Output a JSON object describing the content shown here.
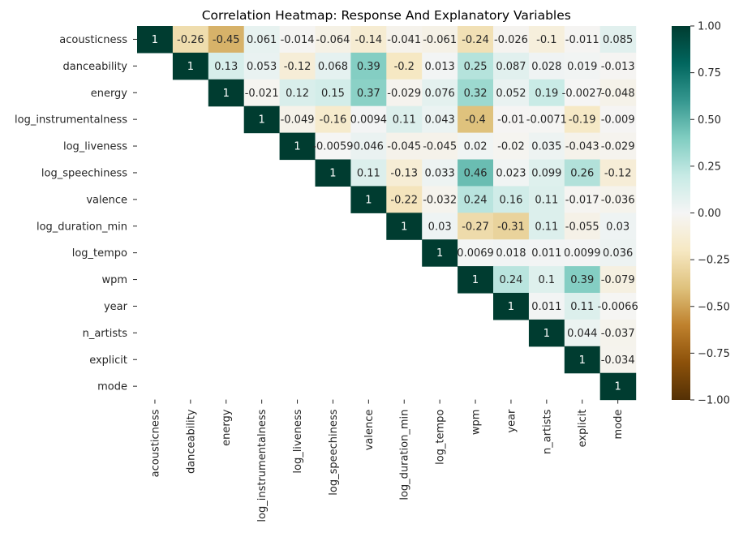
{
  "chart_data": {
    "type": "heatmap",
    "title": "Correlation Heatmap: Response And Explanatory Variables",
    "row_labels": [
      "acousticness",
      "danceability",
      "energy",
      "log_instrumentalness",
      "log_liveness",
      "log_speechiness",
      "valence",
      "log_duration_min",
      "log_tempo",
      "wpm",
      "year",
      "n_artists",
      "explicit",
      "mode"
    ],
    "col_labels": [
      "acousticness",
      "danceability",
      "energy",
      "log_instrumentalness",
      "log_liveness",
      "log_speechiness",
      "valence",
      "log_duration_min",
      "log_tempo",
      "wpm",
      "year",
      "n_artists",
      "explicit",
      "mode"
    ],
    "values": [
      [
        1,
        -0.26,
        -0.45,
        0.061,
        -0.014,
        -0.064,
        -0.14,
        -0.041,
        -0.061,
        -0.24,
        -0.026,
        -0.1,
        -0.011,
        0.085
      ],
      [
        null,
        1,
        0.13,
        0.053,
        -0.12,
        0.068,
        0.39,
        -0.2,
        0.013,
        0.25,
        0.087,
        0.028,
        0.019,
        -0.013
      ],
      [
        null,
        null,
        1,
        -0.021,
        0.12,
        0.15,
        0.37,
        -0.029,
        0.076,
        0.32,
        0.052,
        0.19,
        -0.0027,
        -0.048
      ],
      [
        null,
        null,
        null,
        1,
        -0.049,
        -0.16,
        0.0094,
        0.11,
        0.043,
        -0.4,
        -0.01,
        -0.0071,
        -0.19,
        -0.009
      ],
      [
        null,
        null,
        null,
        null,
        1,
        -0.0059,
        0.046,
        -0.045,
        -0.045,
        0.02,
        -0.02,
        0.035,
        -0.043,
        -0.029
      ],
      [
        null,
        null,
        null,
        null,
        null,
        1,
        0.11,
        -0.13,
        0.033,
        0.46,
        0.023,
        0.099,
        0.26,
        -0.12
      ],
      [
        null,
        null,
        null,
        null,
        null,
        null,
        1,
        -0.22,
        -0.032,
        0.24,
        0.16,
        0.11,
        -0.017,
        -0.036
      ],
      [
        null,
        null,
        null,
        null,
        null,
        null,
        null,
        1,
        0.03,
        -0.27,
        -0.31,
        0.11,
        -0.055,
        0.03
      ],
      [
        null,
        null,
        null,
        null,
        null,
        null,
        null,
        null,
        1,
        0.0069,
        0.018,
        0.011,
        0.0099,
        0.036
      ],
      [
        null,
        null,
        null,
        null,
        null,
        null,
        null,
        null,
        null,
        1,
        0.24,
        0.1,
        0.39,
        -0.079
      ],
      [
        null,
        null,
        null,
        null,
        null,
        null,
        null,
        null,
        null,
        null,
        1,
        0.011,
        0.11,
        -0.0066
      ],
      [
        null,
        null,
        null,
        null,
        null,
        null,
        null,
        null,
        null,
        null,
        null,
        1,
        0.044,
        -0.037
      ],
      [
        null,
        null,
        null,
        null,
        null,
        null,
        null,
        null,
        null,
        null,
        null,
        null,
        1,
        -0.034
      ],
      [
        null,
        null,
        null,
        null,
        null,
        null,
        null,
        null,
        null,
        null,
        null,
        null,
        null,
        1
      ]
    ],
    "value_labels": [
      [
        "1",
        "-0.26",
        "-0.45",
        "0.061",
        "-0.014",
        "-0.064",
        "-0.14",
        "-0.041",
        "-0.061",
        "-0.24",
        "-0.026",
        "-0.1",
        "-0.011",
        "0.085"
      ],
      [
        null,
        "1",
        "0.13",
        "0.053",
        "-0.12",
        "0.068",
        "0.39",
        "-0.2",
        "0.013",
        "0.25",
        "0.087",
        "0.028",
        "0.019",
        "-0.013"
      ],
      [
        null,
        null,
        "1",
        "-0.021",
        "0.12",
        "0.15",
        "0.37",
        "-0.029",
        "0.076",
        "0.32",
        "0.052",
        "0.19",
        "-0.0027",
        "-0.048"
      ],
      [
        null,
        null,
        null,
        "1",
        "-0.049",
        "-0.16",
        "0.0094",
        "0.11",
        "0.043",
        "-0.4",
        "-0.01",
        "-0.0071",
        "-0.19",
        "-0.009"
      ],
      [
        null,
        null,
        null,
        null,
        "1",
        "-0.0059",
        "0.046",
        "-0.045",
        "-0.045",
        "0.02",
        "-0.02",
        "0.035",
        "-0.043",
        "-0.029"
      ],
      [
        null,
        null,
        null,
        null,
        null,
        "1",
        "0.11",
        "-0.13",
        "0.033",
        "0.46",
        "0.023",
        "0.099",
        "0.26",
        "-0.12"
      ],
      [
        null,
        null,
        null,
        null,
        null,
        null,
        "1",
        "-0.22",
        "-0.032",
        "0.24",
        "0.16",
        "0.11",
        "-0.017",
        "-0.036"
      ],
      [
        null,
        null,
        null,
        null,
        null,
        null,
        null,
        "1",
        "0.03",
        "-0.27",
        "-0.31",
        "0.11",
        "-0.055",
        "0.03"
      ],
      [
        null,
        null,
        null,
        null,
        null,
        null,
        null,
        null,
        "1",
        "0.0069",
        "0.018",
        "0.011",
        "0.0099",
        "0.036"
      ],
      [
        null,
        null,
        null,
        null,
        null,
        null,
        null,
        null,
        null,
        "1",
        "0.24",
        "0.1",
        "0.39",
        "-0.079"
      ],
      [
        null,
        null,
        null,
        null,
        null,
        null,
        null,
        null,
        null,
        null,
        "1",
        "0.011",
        "0.11",
        "-0.0066"
      ],
      [
        null,
        null,
        null,
        null,
        null,
        null,
        null,
        null,
        null,
        null,
        null,
        "1",
        "0.044",
        "-0.037"
      ],
      [
        null,
        null,
        null,
        null,
        null,
        null,
        null,
        null,
        null,
        null,
        null,
        null,
        "1",
        "-0.034"
      ],
      [
        null,
        null,
        null,
        null,
        null,
        null,
        null,
        null,
        null,
        null,
        null,
        null,
        null,
        "1"
      ]
    ],
    "colorbar": {
      "vmin": -1.0,
      "vmax": 1.0,
      "ticks": [
        1.0,
        0.75,
        0.5,
        0.25,
        0.0,
        -0.25,
        -0.5,
        -0.75,
        -1.0
      ],
      "tick_labels": [
        "1.00",
        "0.75",
        "0.50",
        "0.25",
        "0.00",
        "−0.25",
        "−0.50",
        "−0.75",
        "−1.00"
      ],
      "colormap": "BrBG"
    }
  }
}
